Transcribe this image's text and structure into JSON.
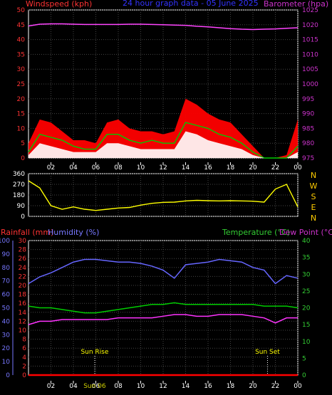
{
  "chart_data": [
    {
      "type": "line",
      "panel": "wind-pressure",
      "title": "24 hour graph data - 05 June 2025",
      "ylabel_left": "Windspeed (kph)",
      "ylabel_right": "Barometer (hpa)",
      "colors": {
        "title": "#3333ff",
        "wind_axis": "#ff3333",
        "pressure_axis": "#cc33cc",
        "gust": "#ff0000",
        "average": "#00cc00",
        "speed": "#ffffff",
        "pressure": "#ff44ff"
      },
      "x_ticks": [
        "02",
        "04",
        "06",
        "08",
        "10",
        "12",
        "14",
        "16",
        "18",
        "20",
        "22",
        "00"
      ],
      "y_left_ticks": [
        0,
        5,
        10,
        15,
        20,
        25,
        30,
        35,
        40,
        45,
        50
      ],
      "y_right_ticks": [
        975,
        980,
        985,
        990,
        995,
        1000,
        1005,
        1010,
        1015,
        1020,
        1025
      ],
      "ylim_left": [
        0,
        50
      ],
      "ylim_right": [
        975,
        1025
      ],
      "hours": [
        0,
        1,
        2,
        3,
        4,
        5,
        6,
        7,
        8,
        9,
        10,
        11,
        12,
        13,
        14,
        15,
        16,
        17,
        18,
        19,
        20,
        21,
        22,
        23,
        24
      ],
      "series": [
        {
          "name": "Gust",
          "axis": "left",
          "values": [
            5,
            13,
            12,
            9,
            6,
            6,
            5,
            12,
            13,
            10,
            9,
            9,
            8,
            9,
            20,
            18,
            15,
            13,
            12,
            8,
            4,
            0,
            0,
            1,
            13
          ]
        },
        {
          "name": "Average",
          "axis": "left",
          "values": [
            2,
            8,
            7,
            6,
            4,
            3,
            3,
            8,
            8,
            6,
            5,
            6,
            5,
            5,
            12,
            11,
            10,
            8,
            7,
            5,
            2,
            0,
            0,
            0,
            4
          ]
        },
        {
          "name": "Speed",
          "axis": "left",
          "values": [
            1,
            5,
            4,
            3,
            2,
            2,
            2,
            5,
            5,
            4,
            3,
            3,
            3,
            3,
            9,
            8,
            6,
            5,
            4,
            3,
            1,
            0,
            0,
            0,
            2
          ]
        },
        {
          "name": "Barometer",
          "axis": "right",
          "values": [
            1019.6,
            1020.2,
            1020.3,
            1020.3,
            1020.2,
            1020.1,
            1020.1,
            1020.1,
            1020.1,
            1020.2,
            1020.2,
            1020.1,
            1020.0,
            1019.9,
            1019.8,
            1019.5,
            1019.3,
            1019.0,
            1018.7,
            1018.5,
            1018.4,
            1018.5,
            1018.6,
            1018.8,
            1019.0
          ]
        }
      ]
    },
    {
      "type": "line",
      "panel": "wind-direction",
      "colors": {
        "direction": "#ffff00",
        "compass": "#ffcc00"
      },
      "y_ticks": [
        0,
        90,
        180,
        270,
        360
      ],
      "ylim": [
        0,
        360
      ],
      "compass_labels": [
        "N",
        "W",
        "S",
        "E",
        "N"
      ],
      "hours": [
        0,
        1,
        2,
        3,
        4,
        5,
        6,
        7,
        8,
        9,
        10,
        11,
        12,
        13,
        14,
        15,
        16,
        17,
        18,
        19,
        20,
        21,
        22,
        23,
        24
      ],
      "series": [
        {
          "name": "Direction",
          "values": [
            300,
            240,
            90,
            60,
            80,
            60,
            50,
            60,
            70,
            75,
            95,
            110,
            118,
            120,
            130,
            135,
            132,
            130,
            132,
            130,
            128,
            120,
            230,
            270,
            80
          ]
        }
      ]
    },
    {
      "type": "line",
      "panel": "temp-humidity-rain",
      "ylabel_rain": "Rainfall (mm)",
      "ylabel_humidity": "Humidity (%)",
      "ylabel_temp": "Temperature (°C)",
      "ylabel_dew": "Dew Point (°C)",
      "colors": {
        "rain_axis": "#ff3333",
        "humidity_axis": "#7777ff",
        "temp_axis": "#33cc33",
        "temperature": "#00cc00",
        "dew_point": "#ff33ff",
        "humidity": "#6666ff",
        "rainfall": "#ff0000"
      },
      "x_ticks": [
        "02",
        "04",
        "06",
        "08",
        "10",
        "12",
        "14",
        "16",
        "18",
        "20",
        "22",
        "00"
      ],
      "rain_ticks": [
        0,
        2,
        4,
        6,
        8,
        10,
        12,
        14,
        16,
        18,
        20,
        22,
        24,
        26,
        28,
        30
      ],
      "humidity_ticks": [
        0,
        10,
        20,
        30,
        40,
        50,
        60,
        70,
        80,
        90,
        100
      ],
      "temp_ticks": [
        0,
        5,
        10,
        15,
        20,
        25,
        30,
        35,
        40
      ],
      "ylim_rain": [
        0,
        30
      ],
      "ylim_humidity": [
        0,
        100
      ],
      "ylim_temp": [
        0,
        40
      ],
      "annotations": [
        {
          "label": "Sun Rise",
          "hour": 5.9
        },
        {
          "label": "Sun Set",
          "hour": 21.3
        },
        {
          "label": "Sun 06",
          "hour": 5.9
        }
      ],
      "hours": [
        0,
        1,
        2,
        3,
        4,
        5,
        6,
        7,
        8,
        9,
        10,
        11,
        12,
        13,
        14,
        15,
        16,
        17,
        18,
        19,
        20,
        21,
        22,
        23,
        24
      ],
      "series": [
        {
          "name": "Humidity",
          "axis": "humidity",
          "values": [
            68,
            73,
            76,
            80,
            84,
            86,
            86,
            85,
            84,
            84,
            83,
            81,
            78,
            72,
            82,
            83,
            84,
            86,
            85,
            84,
            80,
            78,
            68,
            74,
            72
          ]
        },
        {
          "name": "Temperature",
          "axis": "temp",
          "values": [
            20.5,
            20,
            20,
            19.5,
            19,
            18.5,
            18.5,
            19,
            19.5,
            20,
            20.5,
            21,
            21,
            21.5,
            21,
            21,
            21,
            21,
            21,
            21,
            21,
            20.5,
            20.5,
            20.5,
            20
          ]
        },
        {
          "name": "Dew Point",
          "axis": "temp",
          "values": [
            15,
            16,
            16,
            16.5,
            16.5,
            16.5,
            16.5,
            16.5,
            17,
            17,
            17,
            17,
            17.5,
            18,
            18,
            17.5,
            17.5,
            18,
            18,
            18,
            17.5,
            17,
            15.5,
            17,
            17
          ]
        },
        {
          "name": "Rainfall",
          "axis": "rain",
          "values": [
            0,
            0,
            0,
            0,
            0,
            0,
            0,
            0,
            0,
            0,
            0,
            0,
            0,
            0,
            0,
            0,
            0,
            0,
            0,
            0,
            0,
            0,
            0,
            0,
            0
          ]
        }
      ]
    }
  ]
}
